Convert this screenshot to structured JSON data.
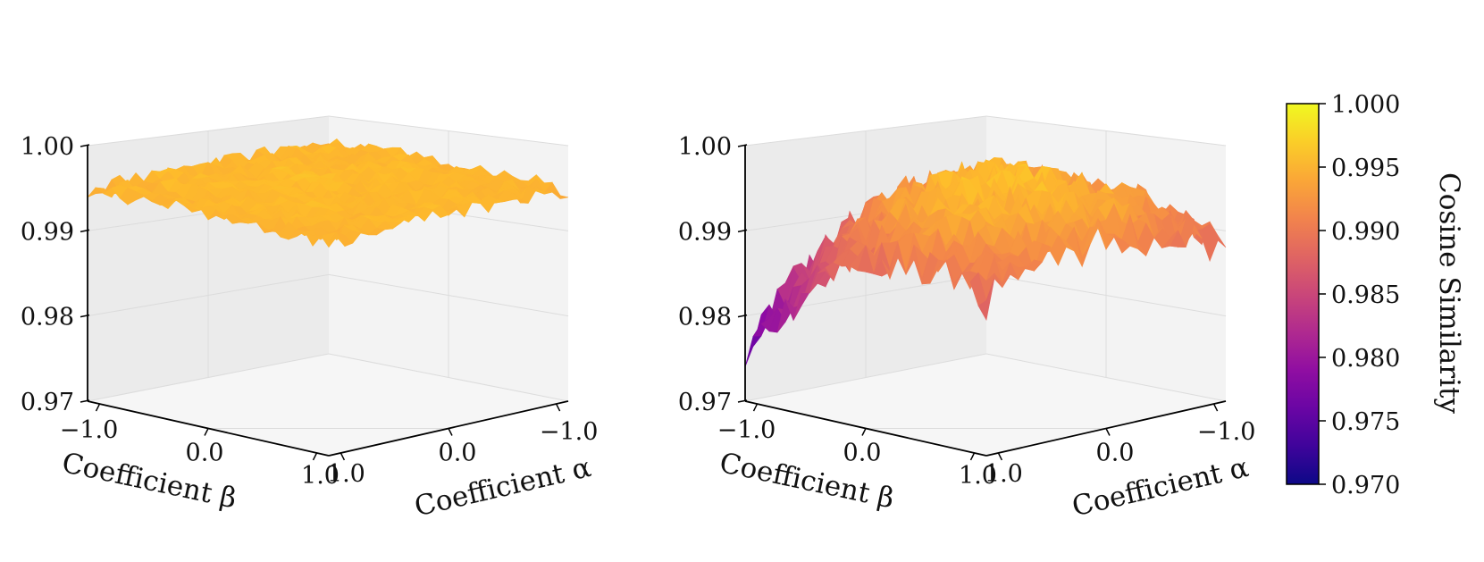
{
  "chart_data": [
    {
      "type": "surface3d",
      "panel": "left",
      "x_axis": {
        "label": "Coefficient α",
        "ticks": [
          "−1.0",
          "0.0",
          "1.0"
        ],
        "range": [
          -1.0,
          1.0
        ]
      },
      "y_axis": {
        "label": "Coefficient β",
        "ticks": [
          "−1.0",
          "0.0",
          "1.0"
        ],
        "range": [
          -1.0,
          1.0
        ]
      },
      "z_axis": {
        "label": "",
        "ticks": [
          "0.97",
          "0.98",
          "0.99",
          "1.00"
        ],
        "range": [
          0.97,
          1.0
        ]
      },
      "surface": {
        "grid": 30,
        "z_center": 0.9955,
        "z_edge": 0.9948,
        "noise": 0.0009
      }
    },
    {
      "type": "surface3d",
      "panel": "right",
      "x_axis": {
        "label": "Coefficient α",
        "ticks": [
          "−1.0",
          "0.0",
          "1.0"
        ],
        "range": [
          -1.0,
          1.0
        ]
      },
      "y_axis": {
        "label": "Coefficient β",
        "ticks": [
          "−1.0",
          "0.0",
          "1.0"
        ],
        "range": [
          -1.0,
          1.0
        ]
      },
      "z_axis": {
        "label": "",
        "ticks": [
          "0.97",
          "0.98",
          "0.99",
          "1.00"
        ],
        "range": [
          0.97,
          1.0
        ]
      },
      "surface": {
        "grid": 30,
        "z_center": 0.9955,
        "z_edge": 0.988,
        "z_far_corner": 0.978,
        "noise": 0.0022
      }
    }
  ],
  "colorbar": {
    "label": "Cosine Similarity",
    "ticks": [
      "1.000",
      "0.995",
      "0.990",
      "0.985",
      "0.980",
      "0.975",
      "0.970"
    ],
    "range": [
      0.97,
      1.0
    ],
    "colormap": "plasma"
  },
  "colors": {
    "pane_left": "#ebebeb",
    "pane_right": "#f3f3f3",
    "pane_floor": "#f6f6f6",
    "grid": "#dcdcdc"
  }
}
